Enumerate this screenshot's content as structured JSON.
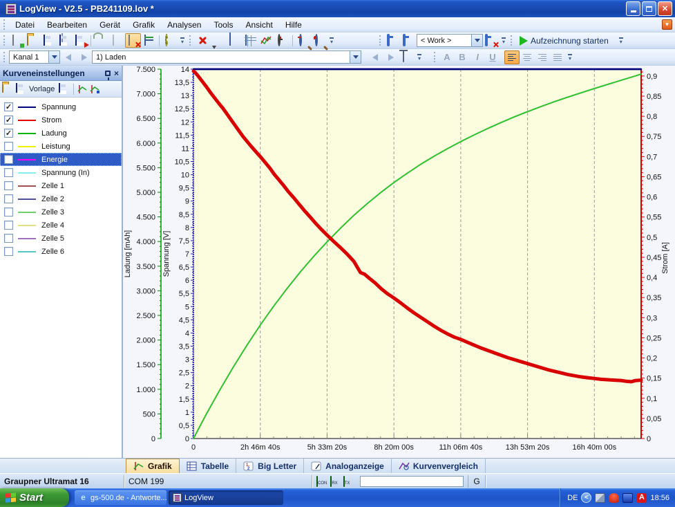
{
  "window": {
    "title": "LogView - V2.5 - PB241109.lov *"
  },
  "menu": {
    "items": [
      "Datei",
      "Bearbeiten",
      "Gerät",
      "Grafik",
      "Analysen",
      "Tools",
      "Ansicht",
      "Hilfe"
    ]
  },
  "toolbar": {
    "work_combo": "< Work >",
    "record_label": "Aufzeichnung starten",
    "format_letters": [
      "A",
      "B",
      "I",
      "U"
    ]
  },
  "channelbar": {
    "channel": "Kanal 1",
    "dataset": "1) Laden"
  },
  "sidebar": {
    "title": "Kurveneinstellungen",
    "vorlage_label": "Vorlage",
    "curves": [
      {
        "label": "Spannung",
        "color": "#000080",
        "checked": true,
        "selected": false
      },
      {
        "label": "Strom",
        "color": "#E00000",
        "checked": true,
        "selected": false
      },
      {
        "label": "Ladung",
        "color": "#00B400",
        "checked": true,
        "selected": false
      },
      {
        "label": "Leistung",
        "color": "#F0F000",
        "checked": false,
        "selected": false
      },
      {
        "label": "Energie",
        "color": "#FF00FF",
        "checked": false,
        "selected": true
      },
      {
        "label": "Spannung (In)",
        "color": "#80F0F0",
        "checked": false,
        "selected": false
      },
      {
        "label": "Zelle 1",
        "color": "#A05050",
        "checked": false,
        "selected": false
      },
      {
        "label": "Zelle 2",
        "color": "#5050A0",
        "checked": false,
        "selected": false
      },
      {
        "label": "Zelle 3",
        "color": "#70D070",
        "checked": false,
        "selected": false
      },
      {
        "label": "Zelle 4",
        "color": "#E0E080",
        "checked": false,
        "selected": false
      },
      {
        "label": "Zelle 5",
        "color": "#A070C0",
        "checked": false,
        "selected": false
      },
      {
        "label": "Zelle 6",
        "color": "#50C8C8",
        "checked": false,
        "selected": false
      }
    ]
  },
  "chart_data": {
    "type": "line",
    "plot_bg": "#FCFCDF",
    "grid_color": "#9A9A9A",
    "frame_top_color": "#101060",
    "x_axis": {
      "range_s": [
        0,
        67000
      ],
      "tick_values": [
        0,
        10000,
        20000,
        30000,
        40000,
        50000,
        60000
      ],
      "tick_labels": [
        "0",
        "2h 46m 40s",
        "5h 33m 20s",
        "8h 20m 00s",
        "11h 06m 40s",
        "13h 53m 20s",
        "16h 40m 00s"
      ],
      "minor_step_s": 2000,
      "axis_color": "#808080"
    },
    "axes": {
      "ladung": {
        "title": "Ladung [mAh]",
        "color": "#00AA00",
        "range": [
          0,
          7500
        ],
        "minor_step": 100,
        "tick_values": [
          7500,
          7000,
          6500,
          6000,
          5500,
          5000,
          4500,
          4000,
          3500,
          3000,
          2500,
          2000,
          1500,
          1000,
          500,
          0
        ],
        "tick_labels": [
          "7.500",
          "7.000",
          "6.500",
          "6.000",
          "5.500",
          "5.000",
          "4.500",
          "4.000",
          "3.500",
          "3.000",
          "2.500",
          "2.000",
          "1.500",
          "1.000",
          "500",
          "0"
        ]
      },
      "spannung": {
        "title": "Spannung [V]",
        "color": "#2222BB",
        "range": [
          0,
          14
        ],
        "minor_step": 0.1,
        "tick_values": [
          14,
          13.5,
          13,
          12.5,
          12,
          11.5,
          11,
          10.5,
          10,
          9.5,
          9,
          8.5,
          8,
          7.5,
          7,
          6.5,
          6,
          5.5,
          5,
          4.5,
          4,
          3.5,
          3,
          2.5,
          2,
          1.5,
          1,
          0.5,
          0
        ],
        "tick_labels": [
          "14",
          "13,5",
          "13",
          "12,5",
          "12",
          "11,5",
          "11",
          "10,5",
          "10",
          "9,5",
          "9",
          "8,5",
          "8",
          "7,5",
          "7",
          "6,5",
          "6",
          "5,5",
          "5",
          "4,5",
          "4",
          "3,5",
          "3",
          "2,5",
          "2",
          "1,5",
          "1",
          "0,5",
          "0"
        ]
      },
      "strom": {
        "title": "Strom [A]",
        "color": "#CC0000",
        "range": [
          0,
          0.917
        ],
        "minor_step": 0.01,
        "tick_values": [
          0.9,
          0.85,
          0.8,
          0.75,
          0.7,
          0.65,
          0.6,
          0.55,
          0.5,
          0.45,
          0.4,
          0.35,
          0.3,
          0.25,
          0.2,
          0.15,
          0.1,
          0.05,
          0
        ],
        "tick_labels": [
          "0,9",
          "0,85",
          "0,8",
          "0,75",
          "0,7",
          "0,65",
          "0,6",
          "0,55",
          "0,5",
          "0,45",
          "0,4",
          "0,35",
          "0,3",
          "0,25",
          "0,2",
          "0,15",
          "0,1",
          "0,05",
          "0"
        ]
      }
    },
    "series": [
      {
        "name": "Spannung",
        "axis": "spannung",
        "color": "#000080",
        "width": 2.5,
        "points": [
          [
            0,
            14
          ],
          [
            67000,
            14
          ]
        ]
      },
      {
        "name": "Ladung",
        "axis": "ladung",
        "color": "#2DC12D",
        "width": 2,
        "points": [
          [
            0,
            0
          ],
          [
            2000,
            512
          ],
          [
            4000,
            998
          ],
          [
            6000,
            1459
          ],
          [
            8000,
            1893
          ],
          [
            10000,
            2303
          ],
          [
            12000,
            2687
          ],
          [
            14000,
            3045
          ],
          [
            16000,
            3383
          ],
          [
            18000,
            3699
          ],
          [
            20000,
            3993
          ],
          [
            22000,
            4271
          ],
          [
            24000,
            4531
          ],
          [
            26000,
            4769
          ],
          [
            28000,
            4992
          ],
          [
            30000,
            5198
          ],
          [
            32000,
            5388
          ],
          [
            34000,
            5567
          ],
          [
            36000,
            5732
          ],
          [
            38000,
            5885
          ],
          [
            40000,
            6029
          ],
          [
            42000,
            6165
          ],
          [
            44000,
            6293
          ],
          [
            46000,
            6415
          ],
          [
            48000,
            6529
          ],
          [
            50000,
            6637
          ],
          [
            52000,
            6740
          ],
          [
            54000,
            6838
          ],
          [
            56000,
            6931
          ],
          [
            58000,
            7020
          ],
          [
            60000,
            7107
          ],
          [
            62000,
            7191
          ],
          [
            64000,
            7274
          ],
          [
            66000,
            7357
          ],
          [
            67000,
            7400
          ]
        ]
      },
      {
        "name": "Strom",
        "axis": "strom",
        "color": "#D80000",
        "width": 5,
        "points": [
          [
            0,
            0.912
          ],
          [
            300,
            0.908
          ],
          [
            800,
            0.898
          ],
          [
            1400,
            0.885
          ],
          [
            2000,
            0.872
          ],
          [
            2600,
            0.858
          ],
          [
            3200,
            0.845
          ],
          [
            3800,
            0.832
          ],
          [
            4400,
            0.82
          ],
          [
            5000,
            0.806
          ],
          [
            5600,
            0.792
          ],
          [
            6200,
            0.778
          ],
          [
            6800,
            0.764
          ],
          [
            7400,
            0.75
          ],
          [
            8000,
            0.738
          ],
          [
            8600,
            0.726
          ],
          [
            9300,
            0.713
          ],
          [
            10000,
            0.7
          ],
          [
            10700,
            0.686
          ],
          [
            11400,
            0.672
          ],
          [
            12100,
            0.656
          ],
          [
            12800,
            0.642
          ],
          [
            13500,
            0.628
          ],
          [
            14200,
            0.613
          ],
          [
            15000,
            0.598
          ],
          [
            15800,
            0.582
          ],
          [
            16600,
            0.566
          ],
          [
            17400,
            0.551
          ],
          [
            18200,
            0.536
          ],
          [
            19100,
            0.52
          ],
          [
            20000,
            0.505
          ],
          [
            21000,
            0.489
          ],
          [
            22000,
            0.474
          ],
          [
            23000,
            0.458
          ],
          [
            24000,
            0.44
          ],
          [
            25000,
            0.412
          ],
          [
            25600,
            0.408
          ],
          [
            26300,
            0.398
          ],
          [
            27200,
            0.386
          ],
          [
            28100,
            0.372
          ],
          [
            29000,
            0.36
          ],
          [
            30000,
            0.349
          ],
          [
            31000,
            0.337
          ],
          [
            32000,
            0.324
          ],
          [
            33000,
            0.312
          ],
          [
            34000,
            0.301
          ],
          [
            35000,
            0.29
          ],
          [
            36000,
            0.279
          ],
          [
            37000,
            0.269
          ],
          [
            38000,
            0.26
          ],
          [
            39000,
            0.252
          ],
          [
            40000,
            0.246
          ],
          [
            41000,
            0.239
          ],
          [
            42000,
            0.232
          ],
          [
            43000,
            0.225
          ],
          [
            44000,
            0.219
          ],
          [
            45000,
            0.213
          ],
          [
            46000,
            0.207
          ],
          [
            47000,
            0.201
          ],
          [
            48000,
            0.196
          ],
          [
            49000,
            0.191
          ],
          [
            50000,
            0.186
          ],
          [
            51000,
            0.181
          ],
          [
            52000,
            0.176
          ],
          [
            53000,
            0.171
          ],
          [
            54000,
            0.167
          ],
          [
            55000,
            0.163
          ],
          [
            56000,
            0.159
          ],
          [
            57000,
            0.156
          ],
          [
            58000,
            0.153
          ],
          [
            59000,
            0.151
          ],
          [
            60000,
            0.149
          ],
          [
            61000,
            0.147
          ],
          [
            62000,
            0.146
          ],
          [
            63000,
            0.145
          ],
          [
            64000,
            0.144
          ],
          [
            64800,
            0.142
          ],
          [
            65500,
            0.141
          ],
          [
            66200,
            0.144
          ],
          [
            67000,
            0.145
          ]
        ]
      }
    ]
  },
  "tabs": [
    {
      "label": "Grafik",
      "icon": "grafik",
      "active": true
    },
    {
      "label": "Tabelle",
      "icon": "tabelle",
      "active": false
    },
    {
      "label": "Big Letter",
      "icon": "bigletter",
      "active": false
    },
    {
      "label": "Analoganzeige",
      "icon": "analog",
      "active": false
    },
    {
      "label": "Kurvenvergleich",
      "icon": "vergleich",
      "active": false
    }
  ],
  "statusbar": {
    "device": "Graupner Ultramat 16",
    "port": "COM 199",
    "leds": [
      "CON",
      "RX",
      "TX"
    ],
    "g_label": "G"
  },
  "taskbar": {
    "start_label": "Start",
    "tasks": [
      {
        "label": "gs-500.de - Antworte...",
        "icon": "ie",
        "active": false
      },
      {
        "label": "LogView",
        "icon": "logview",
        "active": true
      }
    ],
    "tray": {
      "lang": "DE",
      "time": "18:56"
    }
  }
}
